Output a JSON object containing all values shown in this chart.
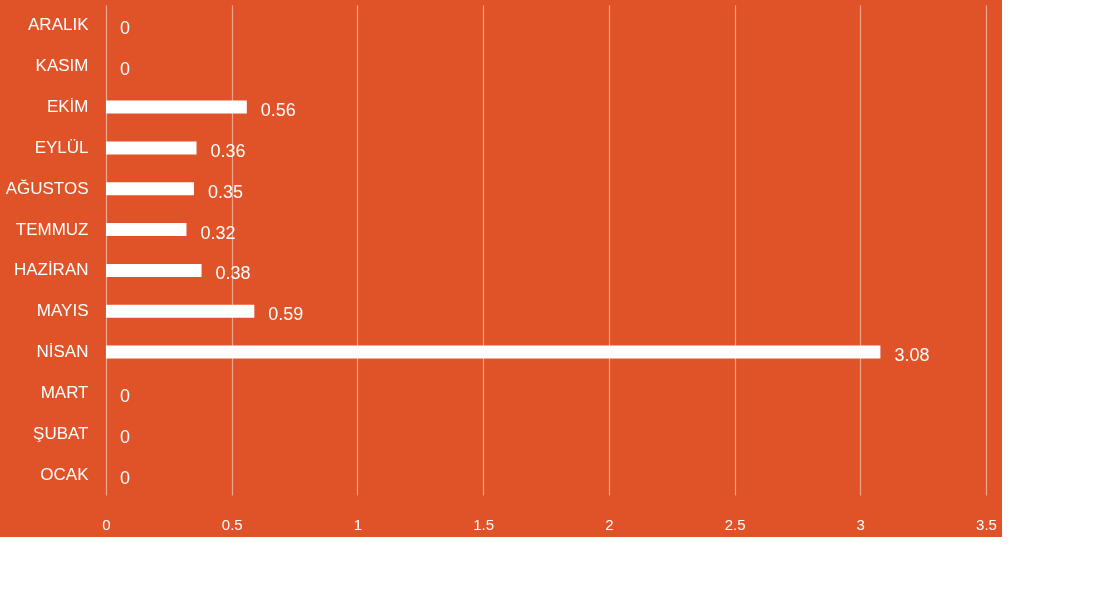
{
  "chart_data": {
    "type": "bar",
    "orientation": "horizontal",
    "categories": [
      "ARALIK",
      "KASIM",
      "EKİM",
      "EYLÜL",
      "AĞUSTOS",
      "TEMMUZ",
      "HAZİRAN",
      "MAYIS",
      "NİSAN",
      "MART",
      "ŞUBAT",
      "OCAK"
    ],
    "values": [
      0,
      0,
      0.56,
      0.36,
      0.35,
      0.32,
      0.38,
      0.59,
      3.08,
      0,
      0,
      0
    ],
    "color": "#ffffff",
    "xlim": [
      0,
      3.5
    ],
    "xticks": [
      0,
      0.5,
      1,
      1.5,
      2,
      2.5,
      3,
      3.5
    ],
    "grid": "x",
    "data_labels": true
  }
}
